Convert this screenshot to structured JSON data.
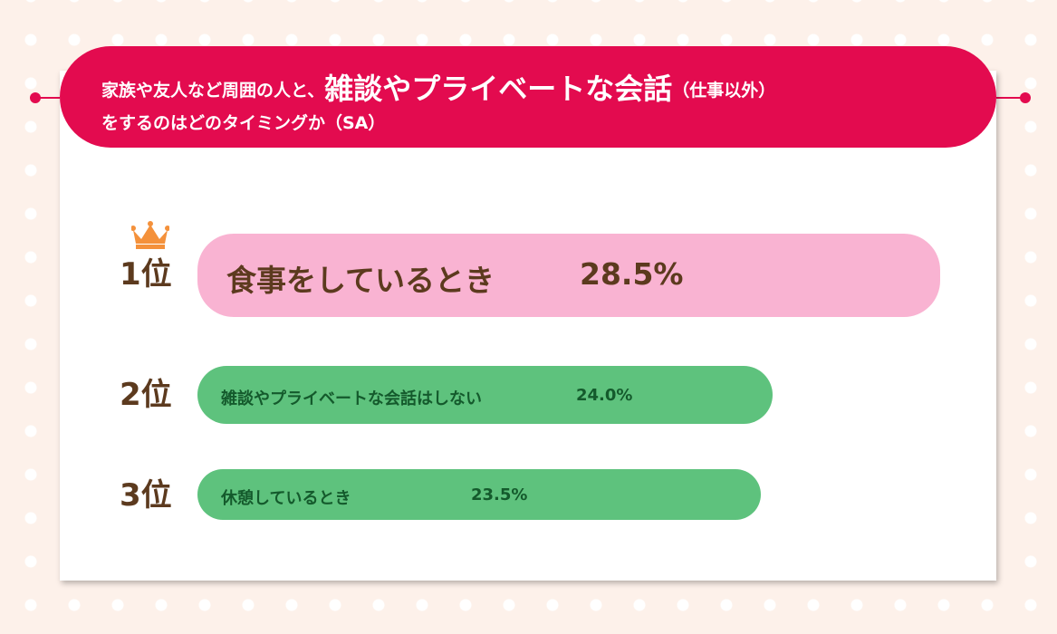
{
  "title": {
    "line1_prefix": "家族や友人など周囲の人と、",
    "line1_emphasis": "雑談やプライベートな会話",
    "line1_suffix": "（仕事以外）",
    "line2": "をするのはどのタイミングか（SA）"
  },
  "colors": {
    "header": "#e30b4f",
    "rank1_bar": "#f9b3d2",
    "rank2_3_bar": "#5ec27d",
    "crown": "#f4913b",
    "rank_text": "#5c3a1e"
  },
  "chart_data": {
    "type": "bar",
    "orientation": "horizontal",
    "categories": [
      "食事をしているとき",
      "雑談やプライベートな会話はしない",
      "休憩しているとき"
    ],
    "values": [
      28.5,
      24.0,
      23.5
    ],
    "value_labels": [
      "28.5%",
      "24.0%",
      "23.5%"
    ],
    "ranks": [
      "1位",
      "2位",
      "3位"
    ]
  }
}
